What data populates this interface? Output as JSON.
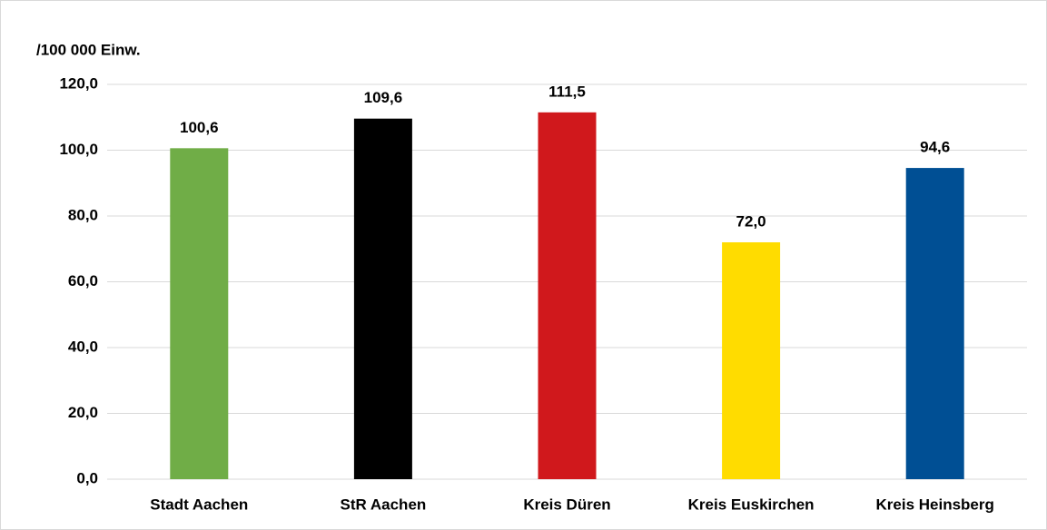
{
  "chart_data": {
    "type": "bar",
    "y_label": "/100 000 Einw.",
    "categories": [
      "Stadt Aachen",
      "StR Aachen",
      "Kreis Düren",
      "Kreis Euskirchen",
      "Kreis Heinsberg"
    ],
    "values": [
      100.6,
      109.6,
      111.5,
      72.0,
      94.6
    ],
    "value_labels": [
      "100,6",
      "109,6",
      "111,5",
      "72,0",
      "94,6"
    ],
    "colors": [
      "#70ad47",
      "#000000",
      "#d0181c",
      "#ffdc00",
      "#004f94"
    ],
    "ylim": [
      0,
      120
    ],
    "yticks": [
      {
        "value": 0,
        "label": "0,0"
      },
      {
        "value": 20,
        "label": "20,0"
      },
      {
        "value": 40,
        "label": "40,0"
      },
      {
        "value": 60,
        "label": "60,0"
      },
      {
        "value": 80,
        "label": "80,0"
      },
      {
        "value": 100,
        "label": "100,0"
      },
      {
        "value": 120,
        "label": "120,0"
      }
    ],
    "grid": true
  }
}
